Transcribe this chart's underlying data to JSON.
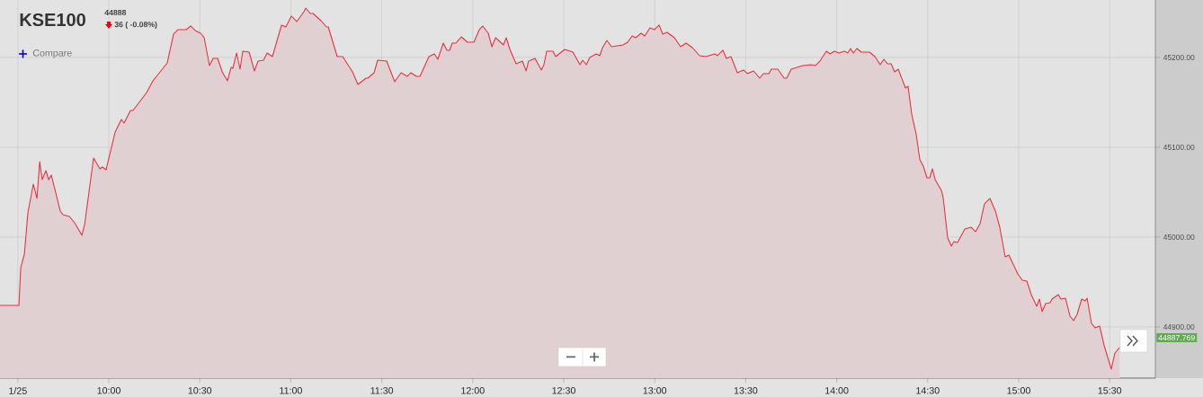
{
  "chart_data": {
    "type": "area",
    "title": "KSE100",
    "subtitle": "44888",
    "annotations": [
      "36 ( -0.08%)",
      "Compare",
      "44887.769"
    ],
    "x": [
      9.402,
      9.506,
      9.516,
      9.536,
      9.555,
      9.585,
      9.605,
      9.62,
      9.634,
      9.654,
      9.669,
      9.684,
      9.733,
      9.748,
      9.783,
      9.812,
      9.852,
      9.867,
      9.916,
      9.951,
      9.965,
      9.985,
      10.035,
      10.069,
      10.084,
      10.119,
      10.133,
      10.208,
      10.242,
      10.282,
      10.321,
      10.356,
      10.38,
      10.425,
      10.45,
      10.474,
      10.504,
      10.524,
      10.553,
      10.573,
      10.598,
      10.623,
      10.652,
      10.672,
      10.682,
      10.702,
      10.721,
      10.736,
      10.771,
      10.8,
      10.82,
      10.85,
      10.87,
      10.899,
      10.949,
      10.973,
      11.003,
      11.033,
      11.072,
      11.082,
      11.107,
      11.122,
      11.166,
      11.196,
      11.206,
      11.255,
      11.285,
      11.339,
      11.369,
      11.413,
      11.423,
      11.458,
      11.477,
      11.527,
      11.571,
      11.606,
      11.64,
      11.66,
      11.69,
      11.71,
      11.759,
      11.789,
      11.808,
      11.838,
      11.858,
      11.873,
      11.887,
      11.907,
      11.937,
      11.971,
      12.006,
      12.036,
      12.055,
      12.085,
      12.105,
      12.125,
      12.169,
      12.184,
      12.204,
      12.238,
      12.273,
      12.293,
      12.307,
      12.342,
      12.377,
      12.391,
      12.406,
      12.441,
      12.456,
      12.505,
      12.55,
      12.589,
      12.604,
      12.624,
      12.643,
      12.678,
      12.698,
      12.713,
      12.737,
      12.762,
      12.826,
      12.851,
      12.876,
      12.895,
      12.925,
      12.945,
      12.974,
      12.999,
      13.024,
      13.044,
      13.068,
      13.108,
      13.142,
      13.172,
      13.207,
      13.246,
      13.281,
      13.33,
      13.345,
      13.375,
      13.394,
      13.419,
      13.454,
      13.488,
      13.508,
      13.543,
      13.577,
      13.597,
      13.627,
      13.641,
      13.676,
      13.711,
      13.725,
      13.75,
      13.814,
      13.859,
      13.884,
      13.908,
      13.943,
      13.963,
      13.987,
      14.012,
      14.042,
      14.061,
      14.076,
      14.091,
      14.111,
      14.135,
      14.18,
      14.21,
      14.239,
      14.259,
      14.279,
      14.299,
      14.318,
      14.338,
      14.378,
      14.392,
      14.412,
      14.437,
      14.457,
      14.476,
      14.496,
      14.511,
      14.526,
      14.541,
      14.575,
      14.585,
      14.61,
      14.63,
      14.644,
      14.664,
      14.704,
      14.738,
      14.763,
      14.788,
      14.812,
      14.842,
      14.872,
      14.896,
      14.926,
      14.946,
      14.995,
      15.02,
      15.045,
      15.069,
      15.099,
      15.114,
      15.129,
      15.148,
      15.173,
      15.183,
      15.218,
      15.232,
      15.257,
      15.282,
      15.302,
      15.321,
      15.346,
      15.366,
      15.376,
      15.4,
      15.42,
      15.445,
      15.47,
      15.509,
      15.529,
      15.554
    ],
    "series": [
      {
        "color": "#e8303e",
        "values": [
          44924,
          44924,
          44966,
          44981,
          45027,
          45059,
          45043,
          45084,
          45064,
          45074,
          45064,
          45069,
          45029,
          45025,
          45023,
          45016,
          45002,
          45014,
          45088,
          45076,
          45078,
          45075,
          45117,
          45131,
          45127,
          45141,
          45141,
          45161,
          45174,
          45184,
          45194,
          45226,
          45231,
          45231,
          45235,
          45230,
          45227,
          45222,
          45191,
          45199,
          45199,
          45184,
          45174,
          45189,
          45188,
          45205,
          45187,
          45207,
          45206,
          45185,
          45196,
          45197,
          45205,
          45201,
          45236,
          45234,
          45246,
          45240,
          45251,
          45255,
          45249,
          45249,
          45241,
          45234,
          45234,
          45201,
          45201,
          45184,
          45170,
          45177,
          45177,
          45183,
          45197,
          45196,
          45173,
          45183,
          45179,
          45183,
          45179,
          45179,
          45201,
          45204,
          45198,
          45216,
          45208,
          45208,
          45216,
          45216,
          45223,
          45217,
          45217,
          45231,
          45235,
          45227,
          45212,
          45222,
          45214,
          45222,
          45209,
          45193,
          45196,
          45185,
          45196,
          45199,
          45186,
          45192,
          45207,
          45207,
          45201,
          45209,
          45206,
          45192,
          45197,
          45192,
          45200,
          45204,
          45202,
          45211,
          45219,
          45212,
          45214,
          45217,
          45224,
          45222,
          45227,
          45224,
          45233,
          45231,
          45236,
          45226,
          45228,
          45222,
          45212,
          45216,
          45211,
          45202,
          45201,
          45204,
          45202,
          45208,
          45199,
          45201,
          45183,
          45186,
          45182,
          45185,
          45177,
          45182,
          45182,
          45187,
          45187,
          45177,
          45177,
          45187,
          45191,
          45192,
          45191,
          45196,
          45207,
          45204,
          45207,
          45205,
          45207,
          45205,
          45210,
          45205,
          45210,
          45206,
          45206,
          45201,
          45192,
          45198,
          45193,
          45193,
          45184,
          45187,
          45166,
          45168,
          45137,
          45114,
          45086,
          45079,
          45066,
          45066,
          45076,
          45064,
          45052,
          45044,
          44999,
          44990,
          44995,
          44994,
          45009,
          45011,
          45006,
          45015,
          45037,
          45043,
          45029,
          45011,
          44978,
          44980,
          44959,
          44952,
          44951,
          44936,
          44923,
          44931,
          44917,
          44926,
          44927,
          44931,
          44936,
          44931,
          44932,
          44912,
          44907,
          44914,
          44931,
          44929,
          44932,
          44904,
          44899,
          44901,
          44879,
          44853,
          44871,
          44877
        ]
      }
    ],
    "xlim": [
      9.402,
      15.751
    ],
    "ylim": [
      44843,
      45264
    ],
    "xticks": [
      {
        "value": 9.5,
        "label": "1/25"
      },
      {
        "value": 10,
        "label": "10:00"
      },
      {
        "value": 10.5,
        "label": "10:30"
      },
      {
        "value": 11,
        "label": "11:00"
      },
      {
        "value": 11.5,
        "label": "11:30"
      },
      {
        "value": 12,
        "label": "12:00"
      },
      {
        "value": 12.5,
        "label": "12:30"
      },
      {
        "value": 13,
        "label": "13:00"
      },
      {
        "value": 13.5,
        "label": "13:30"
      },
      {
        "value": 14,
        "label": "14:00"
      },
      {
        "value": 14.5,
        "label": "14:30"
      },
      {
        "value": 15,
        "label": "15:00"
      },
      {
        "value": 15.5,
        "label": "15:30"
      }
    ],
    "yticks": [
      {
        "value": 44900,
        "label": "44900.00"
      },
      {
        "value": 45000,
        "label": "45000.00"
      },
      {
        "value": 45100,
        "label": "45100.00"
      },
      {
        "value": 45200,
        "label": "45200.00"
      }
    ],
    "grid": true
  }
}
